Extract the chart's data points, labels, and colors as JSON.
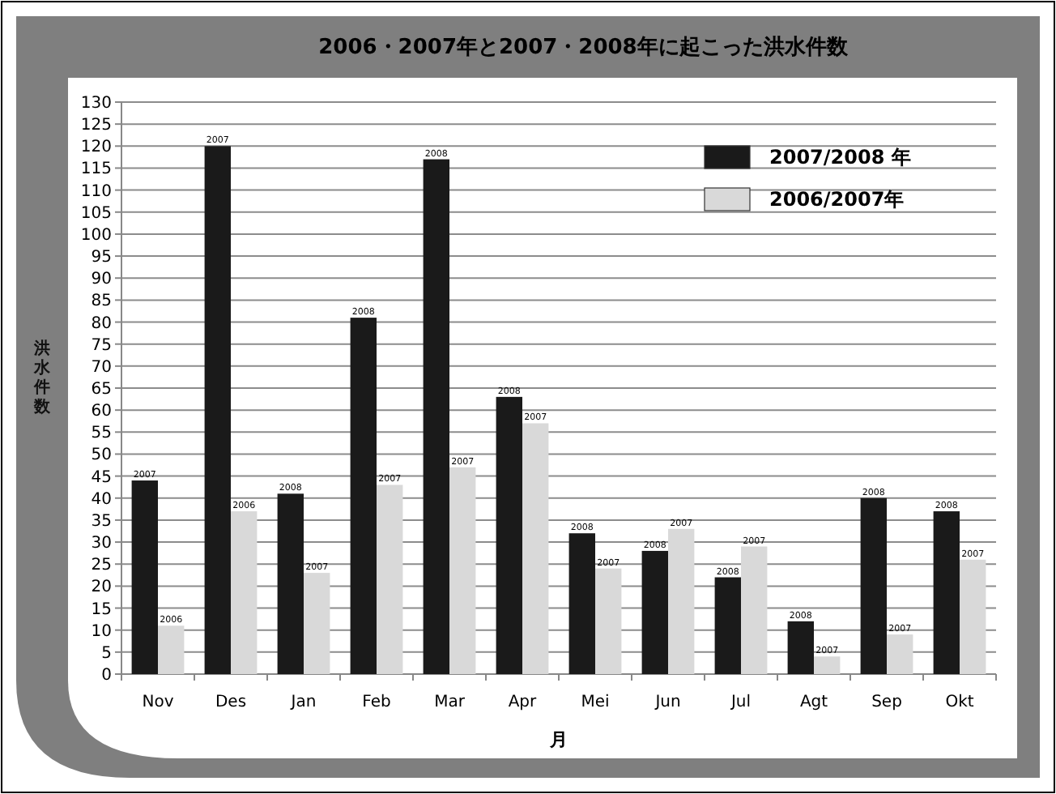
{
  "chart_data": {
    "type": "bar",
    "title": "2006・2007年と2007・2008年に起こった洪水件数",
    "xlabel": "月",
    "ylabel": "洪水件数",
    "categories": [
      "Nov",
      "Des",
      "Jan",
      "Feb",
      "Mar",
      "Apr",
      "Mei",
      "Jun",
      "Jul",
      "Agt",
      "Sep",
      "Okt"
    ],
    "series": [
      {
        "name": "2007/2008 年",
        "color": "#1a1a1a",
        "values": [
          44,
          120,
          41,
          81,
          117,
          63,
          32,
          28,
          22,
          12,
          40,
          37
        ]
      },
      {
        "name": "2006/2007年",
        "color": "#d9d9d9",
        "values": [
          11,
          37,
          23,
          43,
          47,
          57,
          24,
          33,
          29,
          4,
          9,
          26
        ]
      }
    ],
    "annotations": [
      {
        "text": "2007",
        "x": "Nov",
        "y": 44
      },
      {
        "text": "2006",
        "x": "Nov",
        "y": 11
      },
      {
        "text": "2007",
        "x": "Des",
        "y": 120
      },
      {
        "text": "2006",
        "x": "Des",
        "y": 37
      },
      {
        "text": "2008",
        "x": "Jan",
        "y": 41
      },
      {
        "text": "2007",
        "x": "Jan",
        "y": 23
      },
      {
        "text": "2008",
        "x": "Feb",
        "y": 81
      },
      {
        "text": "2007",
        "x": "Feb",
        "y": 43
      },
      {
        "text": "2008",
        "x": "Mar",
        "y": 117
      },
      {
        "text": "2007",
        "x": "Mar",
        "y": 47
      },
      {
        "text": "2008",
        "x": "Apr",
        "y": 63
      },
      {
        "text": "2007",
        "x": "Apr",
        "y": 57
      },
      {
        "text": "2008",
        "x": "Mei",
        "y": 32
      },
      {
        "text": "2007",
        "x": "Mei",
        "y": 24
      },
      {
        "text": "2008",
        "x": "Jun",
        "y": 28
      },
      {
        "text": "2007",
        "x": "Jun",
        "y": 33
      },
      {
        "text": "2008",
        "x": "Jul",
        "y": 22
      },
      {
        "text": "2007",
        "x": "Jul",
        "y": 29
      },
      {
        "text": "2008",
        "x": "Agt",
        "y": 12
      },
      {
        "text": "2007",
        "x": "Agt",
        "y": 4
      },
      {
        "text": "2008",
        "x": "Sep",
        "y": 40
      },
      {
        "text": "2007",
        "x": "Sep",
        "y": 9
      },
      {
        "text": "2008",
        "x": "Okt",
        "y": 37
      },
      {
        "text": "2007",
        "x": "Okt",
        "y": 26
      }
    ],
    "ylim": [
      0,
      130
    ],
    "yticks": [
      0,
      5,
      10,
      15,
      20,
      25,
      30,
      35,
      40,
      45,
      50,
      55,
      60,
      65,
      70,
      75,
      80,
      85,
      90,
      95,
      100,
      105,
      110,
      115,
      120,
      125,
      130
    ],
    "grid": "y",
    "legend": "top right"
  }
}
